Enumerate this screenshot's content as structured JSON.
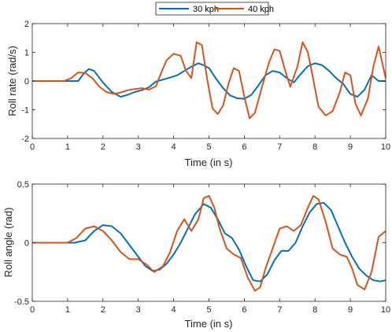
{
  "legend": {
    "entries": [
      {
        "label": "30 kph",
        "color": "#0072BD"
      },
      {
        "label": "40 kph",
        "color": "#D95319"
      }
    ]
  },
  "chart_data": [
    {
      "type": "line",
      "xlabel": "Time (in s)",
      "ylabel": "Roll rate (rad/s)",
      "xlim": [
        0,
        10
      ],
      "ylim": [
        -2,
        2
      ],
      "xticks": [
        0,
        1,
        2,
        3,
        4,
        5,
        6,
        7,
        8,
        9,
        10
      ],
      "yticks": [
        -2,
        -1,
        0,
        1,
        2
      ],
      "grid": false,
      "series": [
        {
          "name": "30 kph",
          "color": "#0072BD",
          "x": [
            0,
            0.9,
            1.3,
            1.45,
            1.6,
            1.75,
            2.0,
            2.25,
            2.5,
            2.7,
            2.9,
            3.1,
            3.3,
            3.5,
            3.7,
            3.9,
            4.1,
            4.3,
            4.5,
            4.7,
            4.85,
            5.0,
            5.2,
            5.4,
            5.6,
            5.8,
            6.0,
            6.2,
            6.4,
            6.6,
            6.8,
            7.0,
            7.2,
            7.4,
            7.6,
            7.8,
            8.0,
            8.2,
            8.4,
            8.6,
            8.8,
            9.0,
            9.2,
            9.4,
            9.6,
            9.8,
            10.0
          ],
          "y": [
            0,
            0,
            0,
            0.25,
            0.42,
            0.35,
            -0.05,
            -0.38,
            -0.55,
            -0.48,
            -0.38,
            -0.32,
            -0.22,
            -0.02,
            0.05,
            0.12,
            0.2,
            0.35,
            0.5,
            0.62,
            0.55,
            0.45,
            0.08,
            -0.25,
            -0.5,
            -0.6,
            -0.62,
            -0.48,
            -0.15,
            0.2,
            0.35,
            0.3,
            0.1,
            -0.05,
            0.25,
            0.52,
            0.62,
            0.55,
            0.35,
            0.1,
            -0.1,
            -0.45,
            -0.55,
            -0.3,
            0.2,
            0.0,
            0.0
          ]
        },
        {
          "name": "40 kph",
          "color": "#D95319",
          "x": [
            0,
            0.9,
            1.1,
            1.3,
            1.5,
            1.7,
            1.9,
            2.1,
            2.3,
            2.5,
            2.7,
            2.9,
            3.1,
            3.3,
            3.5,
            3.65,
            3.8,
            4.0,
            4.2,
            4.35,
            4.5,
            4.65,
            4.8,
            4.95,
            5.1,
            5.25,
            5.4,
            5.55,
            5.7,
            5.85,
            6.0,
            6.15,
            6.3,
            6.5,
            6.7,
            6.85,
            7.0,
            7.15,
            7.3,
            7.5,
            7.65,
            7.8,
            7.95,
            8.1,
            8.3,
            8.5,
            8.7,
            8.85,
            9.0,
            9.15,
            9.3,
            9.5,
            9.65,
            9.8,
            10.0
          ],
          "y": [
            0,
            0,
            0.1,
            0.3,
            0.28,
            0.1,
            -0.2,
            -0.38,
            -0.45,
            -0.4,
            -0.32,
            -0.28,
            -0.25,
            -0.3,
            -0.18,
            0.3,
            0.72,
            0.95,
            0.88,
            0.35,
            0.1,
            1.35,
            1.25,
            0.05,
            -0.95,
            -1.15,
            -0.85,
            -0.1,
            0.45,
            0.35,
            -0.55,
            -1.3,
            -1.1,
            -0.2,
            0.65,
            1.1,
            1.05,
            0.4,
            -0.2,
            0.5,
            1.35,
            1.0,
            0.05,
            -0.9,
            -1.2,
            -1.05,
            -0.4,
            0.3,
            0.2,
            -0.8,
            -1.2,
            -0.6,
            0.5,
            1.2,
            0.1
          ]
        }
      ]
    },
    {
      "type": "line",
      "xlabel": "Time (in s)",
      "ylabel": "Roll angle (rad)",
      "xlim": [
        0,
        10
      ],
      "ylim": [
        -0.5,
        0.5
      ],
      "xticks": [
        0,
        1,
        2,
        3,
        4,
        5,
        6,
        7,
        8,
        9,
        10
      ],
      "yticks": [
        -0.5,
        0,
        0.5
      ],
      "grid": false,
      "series": [
        {
          "name": "30 kph",
          "color": "#0072BD",
          "x": [
            0,
            1.2,
            1.5,
            1.75,
            2.0,
            2.25,
            2.5,
            2.75,
            3.0,
            3.2,
            3.4,
            3.6,
            3.8,
            4.0,
            4.2,
            4.4,
            4.6,
            4.85,
            5.05,
            5.25,
            5.45,
            5.65,
            5.85,
            6.05,
            6.25,
            6.45,
            6.65,
            6.85,
            7.05,
            7.25,
            7.45,
            7.65,
            7.85,
            8.05,
            8.25,
            8.45,
            8.65,
            8.85,
            9.05,
            9.25,
            9.45,
            9.65,
            9.85,
            10.0
          ],
          "y": [
            0,
            0,
            0.02,
            0.1,
            0.15,
            0.14,
            0.08,
            -0.02,
            -0.12,
            -0.2,
            -0.24,
            -0.23,
            -0.18,
            -0.1,
            0.0,
            0.12,
            0.24,
            0.33,
            0.3,
            0.2,
            0.08,
            0.04,
            -0.06,
            -0.2,
            -0.32,
            -0.33,
            -0.27,
            -0.15,
            -0.07,
            -0.07,
            0.0,
            0.14,
            0.26,
            0.33,
            0.34,
            0.28,
            0.14,
            0.0,
            -0.12,
            -0.22,
            -0.28,
            -0.32,
            -0.33,
            -0.32
          ]
        },
        {
          "name": "40 kph",
          "color": "#D95319",
          "x": [
            0,
            1.0,
            1.25,
            1.5,
            1.75,
            2.0,
            2.25,
            2.5,
            2.75,
            3.0,
            3.25,
            3.45,
            3.7,
            3.9,
            4.1,
            4.3,
            4.5,
            4.7,
            4.85,
            5.0,
            5.15,
            5.3,
            5.5,
            5.7,
            5.9,
            6.1,
            6.3,
            6.45,
            6.6,
            6.8,
            7.0,
            7.2,
            7.4,
            7.6,
            7.8,
            7.95,
            8.1,
            8.3,
            8.5,
            8.7,
            8.9,
            9.05,
            9.2,
            9.4,
            9.6,
            9.8,
            10.0
          ],
          "y": [
            0,
            0,
            0.04,
            0.12,
            0.14,
            0.1,
            0.02,
            -0.08,
            -0.14,
            -0.14,
            -0.19,
            -0.25,
            -0.2,
            -0.08,
            0.1,
            0.2,
            0.1,
            0.2,
            0.38,
            0.4,
            0.3,
            0.12,
            -0.05,
            -0.1,
            -0.13,
            -0.3,
            -0.41,
            -0.38,
            -0.22,
            -0.05,
            0.12,
            0.14,
            0.1,
            0.15,
            0.3,
            0.4,
            0.37,
            0.18,
            -0.05,
            -0.1,
            -0.12,
            -0.22,
            -0.36,
            -0.4,
            -0.25,
            0.05,
            0.1
          ]
        }
      ]
    }
  ]
}
